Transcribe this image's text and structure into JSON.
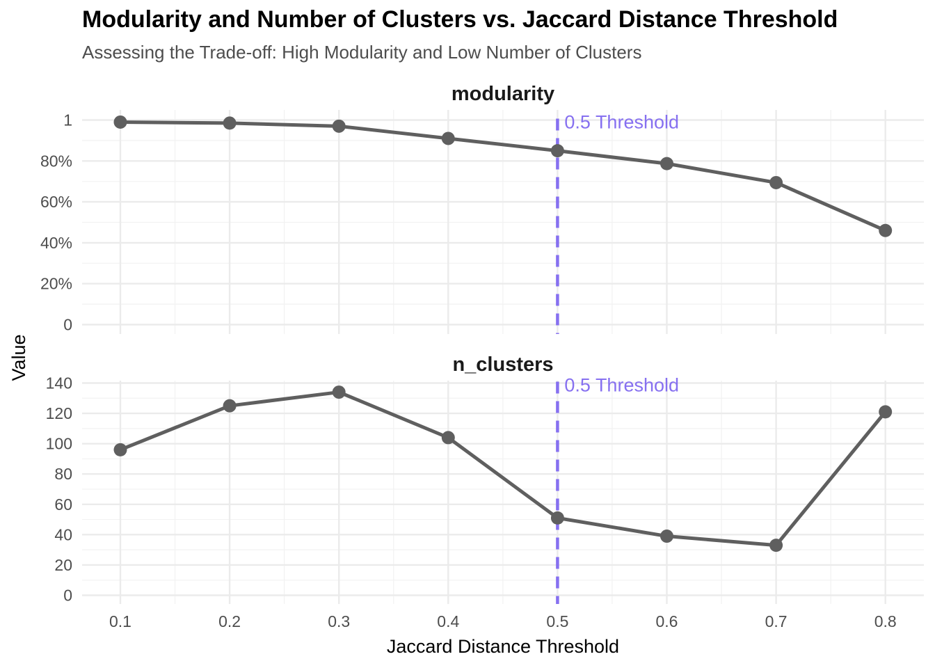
{
  "chart_data": {
    "type": "line",
    "title": "Modularity and Number of Clusters vs. Jaccard Distance Threshold",
    "subtitle": "Assessing the Trade-off: High Modularity and Low Number of Clusters",
    "xlabel": "Jaccard Distance Threshold",
    "ylabel": "Value",
    "x": [
      0.1,
      0.2,
      0.3,
      0.4,
      0.5,
      0.6,
      0.7,
      0.8
    ],
    "x_tick_labels": [
      "0.1",
      "0.2",
      "0.3",
      "0.4",
      "0.5",
      "0.6",
      "0.7",
      "0.8"
    ],
    "grid": true,
    "line_color": "#5f5f5f",
    "threshold": {
      "x": 0.5,
      "label": "0.5 Threshold",
      "color": "#8670f0",
      "style": "dashed"
    },
    "panels": [
      {
        "name": "modularity",
        "values": [
          0.99,
          0.985,
          0.97,
          0.91,
          0.85,
          0.787,
          0.694,
          0.46
        ],
        "ylim": [
          0,
          1
        ],
        "y_ticks": [
          0,
          0.2,
          0.4,
          0.6,
          0.8,
          1
        ],
        "y_tick_labels": [
          "0",
          "20%",
          "40%",
          "60%",
          "80%",
          "1"
        ]
      },
      {
        "name": "n_clusters",
        "values": [
          96,
          125,
          134,
          104,
          51,
          39,
          33,
          121
        ],
        "ylim": [
          0,
          140
        ],
        "y_ticks": [
          0,
          20,
          40,
          60,
          80,
          100,
          120,
          140
        ],
        "y_tick_labels": [
          "0",
          "20",
          "40",
          "60",
          "80",
          "100",
          "120",
          "140"
        ]
      }
    ]
  }
}
